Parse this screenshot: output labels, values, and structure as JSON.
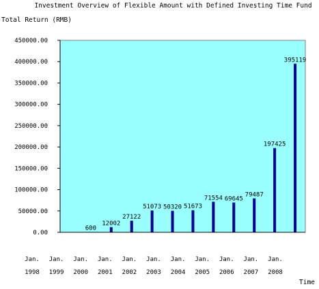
{
  "chart_data": {
    "type": "bar",
    "title": "Investment Overview of Flexible Amount with Defined Investing Time Fund",
    "ylabel": "Total Return (RMB)",
    "xlabel": "Time",
    "ylim": [
      0,
      450000
    ],
    "yticks": [
      0,
      50000,
      100000,
      150000,
      200000,
      250000,
      300000,
      350000,
      400000,
      450000
    ],
    "ytick_labels": [
      "0.00",
      "50000.00",
      "100000.00",
      "150000.00",
      "200000.00",
      "250000.00",
      "300000.00",
      "350000.00",
      "400000.00",
      "450000.00"
    ],
    "categories": [
      {
        "line1": "Jan.",
        "line2": "1998"
      },
      {
        "line1": "Jan.",
        "line2": "1999"
      },
      {
        "line1": "Jan.",
        "line2": "2000"
      },
      {
        "line1": "Jan.",
        "line2": "2001"
      },
      {
        "line1": "Jan.",
        "line2": "2002"
      },
      {
        "line1": "Jan.",
        "line2": "2003"
      },
      {
        "line1": "Jan.",
        "line2": "2004"
      },
      {
        "line1": "Jan.",
        "line2": "2005"
      },
      {
        "line1": "Jan.",
        "line2": "2006"
      },
      {
        "line1": "Jan.",
        "line2": "2007"
      },
      {
        "line1": "Jan.",
        "line2": "2008"
      },
      {
        "line1": "",
        "line2": ""
      }
    ],
    "values": [
      0,
      600,
      12002,
      27122,
      51073,
      50320,
      51673,
      71554,
      69645,
      79487,
      197425,
      395119
    ],
    "data_labels": [
      "",
      "600",
      "12002",
      "27122",
      "51073",
      "50320",
      "51673",
      "71554",
      "69645",
      "79487",
      "197425",
      "395119"
    ],
    "plot_background": "#99ffff",
    "bar_color": "#000099",
    "grid": false,
    "legend": "none"
  }
}
